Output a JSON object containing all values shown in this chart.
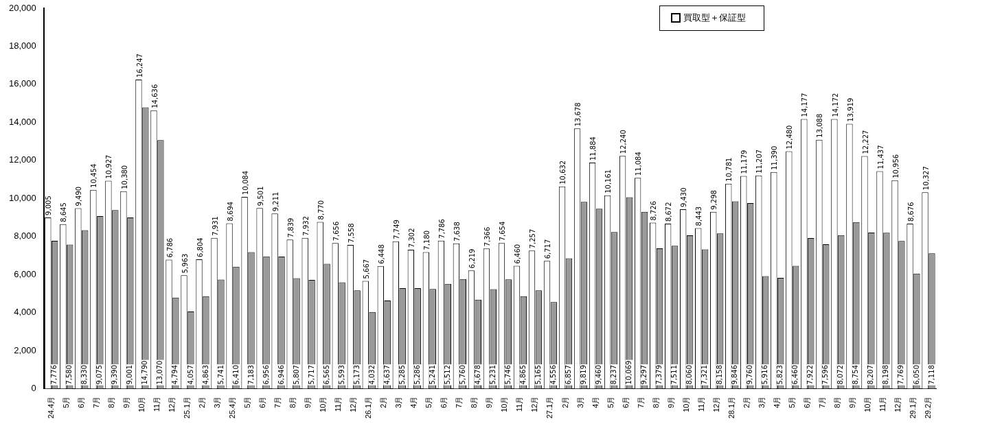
{
  "chart_data": {
    "type": "bar",
    "categories": [
      "24.4月",
      "5月",
      "6月",
      "7月",
      "8月",
      "9月",
      "10月",
      "11月",
      "12月",
      "25.1月",
      "2月",
      "3月",
      "25.4月",
      "5月",
      "6月",
      "7月",
      "8月",
      "9月",
      "10月",
      "11月",
      "12月",
      "26.1月",
      "2月",
      "3月",
      "4月",
      "5月",
      "6月",
      "7月",
      "8月",
      "9月",
      "10月",
      "11月",
      "12月",
      "27.1月",
      "2月",
      "3月",
      "4月",
      "5月",
      "6月",
      "7月",
      "8月",
      "9月",
      "10月",
      "11月",
      "12月",
      "28.1月",
      "2月",
      "3月",
      "4月",
      "5月",
      "6月",
      "7月",
      "8月",
      "9月",
      "10月",
      "11月",
      "12月",
      "29.1月",
      "29.2月"
    ],
    "series": [
      {
        "name": "買取型＋保証型",
        "color": "#ffffff",
        "values": [
          9005,
          8645,
          9490,
          10454,
          10927,
          10380,
          16247,
          14636,
          6786,
          5963,
          6804,
          7931,
          8694,
          10084,
          9501,
          9211,
          7839,
          7932,
          8770,
          7656,
          7558,
          5667,
          6448,
          7749,
          7302,
          7180,
          7786,
          7638,
          6219,
          7366,
          7654,
          6460,
          7257,
          6717,
          10632,
          13678,
          11884,
          10161,
          12240,
          11084,
          8726,
          8672,
          9430,
          8443,
          9298,
          10781,
          11179,
          11207,
          11390,
          12480,
          14177,
          13088,
          14172,
          13919,
          12227,
          11437,
          10956,
          8676,
          10327
        ],
        "value_labels": [
          "9,005",
          "8,645",
          "9,490",
          "10,454",
          "10,927",
          "10,380",
          "16,247",
          "14,636",
          "6,786",
          "5,963",
          "6,804",
          "7,931",
          "8,694",
          "10,084",
          "9,501",
          "9,211",
          "7,839",
          "7,932",
          "8,770",
          "7,656",
          "7,558",
          "5,667",
          "6,448",
          "7,749",
          "7,302",
          "7,180",
          "7,786",
          "7,638",
          "6,219",
          "7,366",
          "7,654",
          "6,460",
          "7,257",
          "6,717",
          "10,632",
          "13,678",
          "11,884",
          "10,161",
          "12,240",
          "11,084",
          "8,726",
          "8,672",
          "9,430",
          "8,443",
          "9,298",
          "10,781",
          "11,179",
          "11,207",
          "11,390",
          "12,480",
          "14,177",
          "13,088",
          "14,172",
          "13,919",
          "12,227",
          "11,437",
          "10,956",
          "8,676",
          "10,327"
        ]
      },
      {
        "color": "#9a9a9a",
        "values": [
          7776,
          7580,
          8330,
          9075,
          9390,
          9001,
          14790,
          13070,
          4794,
          4057,
          4863,
          5741,
          6410,
          7183,
          6956,
          6946,
          5807,
          5717,
          6565,
          5593,
          5173,
          4032,
          4637,
          5285,
          5286,
          5241,
          5512,
          5760,
          4678,
          5231,
          5746,
          4865,
          5165,
          4556,
          6857,
          9819,
          9460,
          8237,
          10069,
          9297,
          7379,
          7511,
          8060,
          7321,
          8158,
          9846,
          9760,
          5916,
          5823,
          6460,
          7922,
          7596,
          8072,
          8754,
          8207,
          8198,
          7769,
          6050,
          7118
        ],
        "value_labels": [
          "7,776",
          "7,580",
          "8,330",
          "9,075",
          "9,390",
          "9,001",
          "14,790",
          "13,070",
          "4,794",
          "4,057",
          "4,863",
          "5,741",
          "6,410",
          "7,183",
          "6,956",
          "6,946",
          "5,807",
          "5,717",
          "6,565",
          "5,593",
          "5,173",
          "4,032",
          "4,637",
          "5,285",
          "5,286",
          "5,241",
          "5,512",
          "5,760",
          "4,678",
          "5,231",
          "5,746",
          "4,865",
          "5,165",
          "4,556",
          "6,857",
          "9,819",
          "9,460",
          "8,237",
          "10,069",
          "9,297",
          "7,379",
          "7,511",
          "8,060",
          "7,321",
          "8,158",
          "9,846",
          "9,760",
          "5,916",
          "5,823",
          "6,460",
          "7,922",
          "7,596",
          "8,072",
          "8,754",
          "8,207",
          "8,198",
          "7,769",
          "6,050",
          "7,118"
        ]
      }
    ],
    "ylim": [
      0,
      20000
    ],
    "yticks": [
      0,
      {
        "value": 2000,
        "label": "2,000"
      },
      {
        "value": 4000,
        "label": "4,000"
      },
      {
        "value": 6000,
        "label": "6,000"
      },
      {
        "value": 8000,
        "label": "8,000"
      },
      {
        "value": 10000,
        "label": "10,000"
      },
      {
        "value": 12000,
        "label": "12,000"
      },
      {
        "value": 14000,
        "label": "14,000"
      },
      {
        "value": 16000,
        "label": "16,000"
      },
      {
        "value": 18000,
        "label": "18,000"
      },
      {
        "value": 20000,
        "label": "20,000"
      }
    ],
    "grid": false,
    "legend": "top right"
  }
}
